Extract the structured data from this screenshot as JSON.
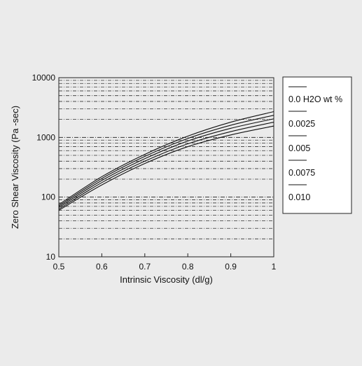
{
  "chart_data": {
    "type": "line",
    "title": "",
    "xlabel": "Intrinsic Viscosity (dl/g)",
    "ylabel": "Zero Shear Viscosity (Pa -sec)",
    "xlim": [
      0.5,
      1.0
    ],
    "ylim": [
      10,
      10000
    ],
    "y_scale": "log",
    "grid": true,
    "legend_position": "right",
    "x_ticks": [
      "0.5",
      "0.6",
      "0.7",
      "0.8",
      "0.9",
      "1"
    ],
    "x_tick_values": [
      0.5,
      0.6,
      0.7,
      0.8,
      0.9,
      1.0
    ],
    "y_ticks": [
      "10",
      "100",
      "1000",
      "10000"
    ],
    "y_tick_values": [
      10,
      100,
      1000,
      10000
    ],
    "x": [
      0.5,
      0.6,
      0.7,
      0.8,
      0.9,
      1.0
    ],
    "series": [
      {
        "name": "0.0 H2O wt %",
        "values": [
          75,
          220,
          520,
          1050,
          1800,
          2700
        ]
      },
      {
        "name": "0.0025",
        "values": [
          71,
          205,
          480,
          960,
          1600,
          2350
        ]
      },
      {
        "name": "0.005",
        "values": [
          67,
          190,
          440,
          870,
          1420,
          2050
        ]
      },
      {
        "name": "0.0075",
        "values": [
          63,
          175,
          400,
          780,
          1250,
          1800
        ]
      },
      {
        "name": "0.010",
        "values": [
          60,
          160,
          365,
          700,
          1100,
          1550
        ]
      }
    ],
    "colors": {
      "line": "#111111",
      "grid": "#333333",
      "background": "#ebebeb"
    }
  }
}
